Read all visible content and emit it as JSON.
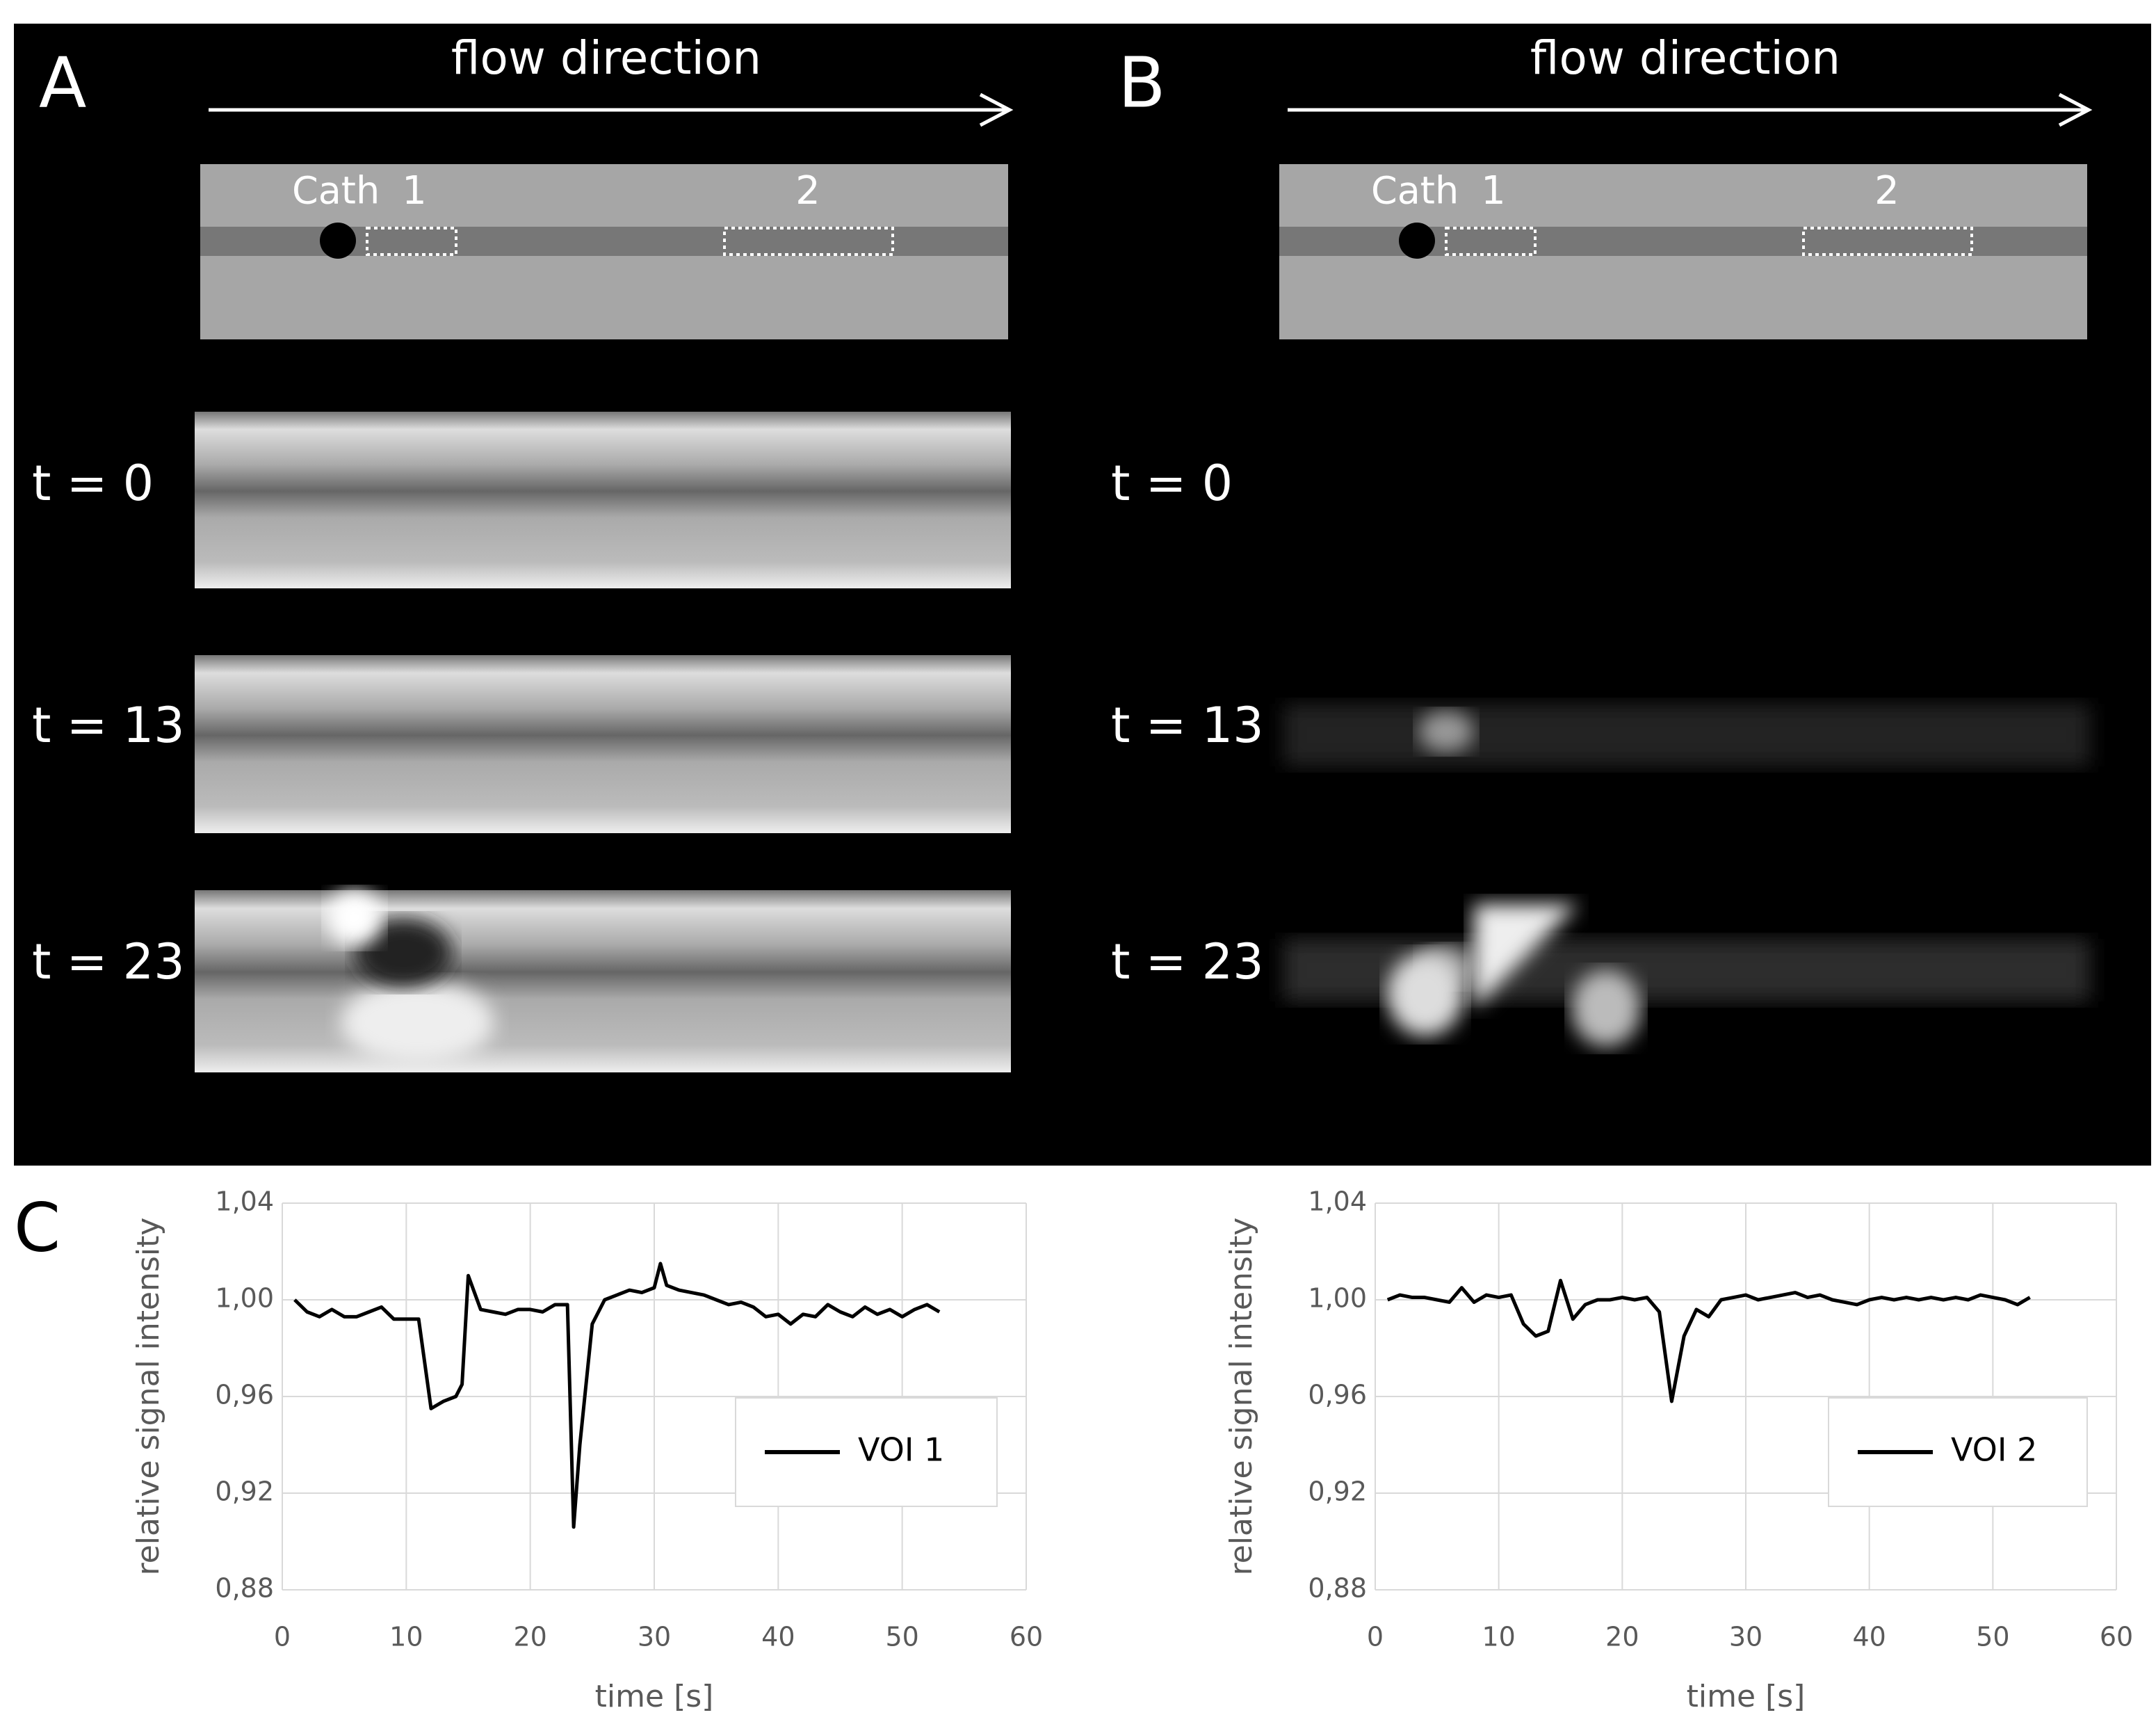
{
  "panels": [
    {
      "label": "A",
      "flow": "flow direction",
      "catheter": "Cath",
      "voi1": "1",
      "voi2": "2",
      "times": [
        "t = 0",
        "t = 13",
        "t = 23"
      ]
    },
    {
      "label": "B",
      "flow": "flow direction",
      "catheter": "Cath",
      "voi1": "1",
      "voi2": "2",
      "times": [
        "t = 0",
        "t = 13",
        "t = 23"
      ]
    }
  ],
  "panel_c_label": "C",
  "chart_data": [
    {
      "type": "line",
      "x_label": "time [s]",
      "y_label": "relative signal intensity",
      "x": [
        1,
        2,
        3,
        4,
        5,
        6,
        7,
        8,
        9,
        10,
        11,
        12,
        13,
        14,
        14.5,
        15,
        16,
        17,
        18,
        19,
        20,
        21,
        22,
        23,
        23.5,
        24,
        25,
        26,
        27,
        28,
        29,
        30,
        30.5,
        31,
        32,
        33,
        34,
        35,
        36,
        37,
        38,
        39,
        40,
        41,
        42,
        43,
        44,
        45,
        46,
        47,
        48,
        49,
        50,
        51,
        52,
        53
      ],
      "series": [
        {
          "name": "VOI 1",
          "color": "#000000",
          "values": [
            1.0,
            0.995,
            0.993,
            0.996,
            0.993,
            0.993,
            0.995,
            0.997,
            0.992,
            0.992,
            0.992,
            0.955,
            0.958,
            0.96,
            0.965,
            1.01,
            0.996,
            0.995,
            0.994,
            0.996,
            0.996,
            0.995,
            0.998,
            0.998,
            0.906,
            0.94,
            0.99,
            1.0,
            1.002,
            1.004,
            1.003,
            1.005,
            1.015,
            1.006,
            1.004,
            1.003,
            1.002,
            1.0,
            0.998,
            0.999,
            0.997,
            0.993,
            0.994,
            0.99,
            0.994,
            0.993,
            0.998,
            0.995,
            0.993,
            0.997,
            0.994,
            0.996,
            0.993,
            0.996,
            0.998,
            0.995
          ]
        }
      ],
      "xlim": [
        0,
        60
      ],
      "xticks": [
        0,
        10,
        20,
        30,
        40,
        50,
        60
      ],
      "ylim": [
        0.88,
        1.04
      ],
      "yticks": [
        {
          "value": 0.88,
          "label": "0,88"
        },
        {
          "value": 0.92,
          "label": "0,92"
        },
        {
          "value": 0.96,
          "label": "0,96"
        },
        {
          "value": 1.0,
          "label": "1,00"
        },
        {
          "value": 1.04,
          "label": "1,04"
        }
      ],
      "grid": true,
      "legend_position": "lower right"
    },
    {
      "type": "line",
      "x_label": "time [s]",
      "y_label": "relative signal intensity",
      "x": [
        1,
        2,
        3,
        4,
        5,
        6,
        7,
        8,
        9,
        10,
        11,
        12,
        13,
        14,
        15,
        16,
        17,
        18,
        19,
        20,
        21,
        22,
        23,
        24,
        25,
        26,
        27,
        28,
        29,
        30,
        31,
        32,
        33,
        34,
        35,
        36,
        37,
        38,
        39,
        40,
        41,
        42,
        43,
        44,
        45,
        46,
        47,
        48,
        49,
        50,
        51,
        52,
        53
      ],
      "series": [
        {
          "name": "VOI 2",
          "color": "#000000",
          "values": [
            1.0,
            1.002,
            1.001,
            1.001,
            1.0,
            0.999,
            1.005,
            0.999,
            1.002,
            1.001,
            1.002,
            0.99,
            0.985,
            0.987,
            1.008,
            0.992,
            0.998,
            1.0,
            1.0,
            1.001,
            1.0,
            1.001,
            0.995,
            0.958,
            0.985,
            0.996,
            0.993,
            1.0,
            1.001,
            1.002,
            1.0,
            1.001,
            1.002,
            1.003,
            1.001,
            1.002,
            1.0,
            0.999,
            0.998,
            1.0,
            1.001,
            1.0,
            1.001,
            1.0,
            1.001,
            1.0,
            1.001,
            1.0,
            1.002,
            1.001,
            1.0,
            0.998,
            1.001
          ]
        }
      ],
      "xlim": [
        0,
        60
      ],
      "xticks": [
        0,
        10,
        20,
        30,
        40,
        50,
        60
      ],
      "ylim": [
        0.88,
        1.04
      ],
      "yticks": [
        {
          "value": 0.88,
          "label": "0,88"
        },
        {
          "value": 0.92,
          "label": "0,92"
        },
        {
          "value": 0.96,
          "label": "0,96"
        },
        {
          "value": 1.0,
          "label": "1,00"
        },
        {
          "value": 1.04,
          "label": "1,04"
        }
      ],
      "grid": true,
      "legend_position": "lower right"
    }
  ]
}
